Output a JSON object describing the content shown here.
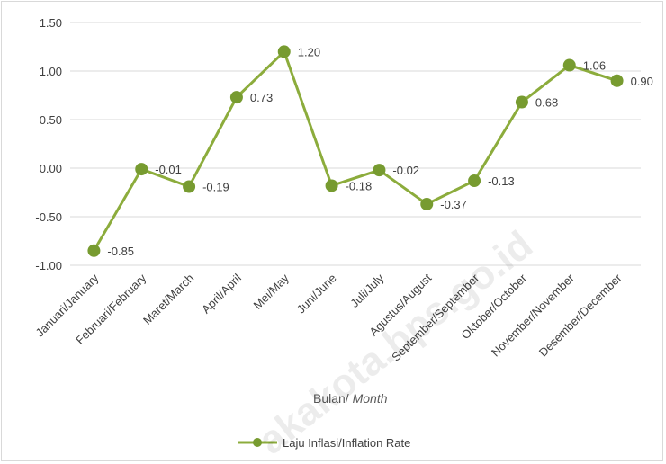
{
  "chart_data": {
    "type": "line",
    "categories": [
      "Januari/January",
      "Februari/February",
      "Maret/March",
      "April/April",
      "Mei/May",
      "Juni/June",
      "Juli/July",
      "Agustus/August",
      "September/September",
      "Oktober/October",
      "November/November",
      "Desember/December"
    ],
    "series": [
      {
        "name": "Laju Inflasi/Inflation Rate",
        "values": [
          -0.85,
          -0.01,
          -0.19,
          0.73,
          1.2,
          -0.18,
          -0.02,
          -0.37,
          -0.13,
          0.68,
          1.06,
          0.9
        ]
      }
    ],
    "data_labels": [
      "-0.85",
      "-0.01",
      "-0.19",
      "0.73",
      "1.20",
      "-0.18",
      "-0.02",
      "-0.37",
      "-0.13",
      "0.68",
      "1.06",
      "0.90"
    ],
    "y_ticks": [
      1.5,
      1.0,
      0.5,
      0.0,
      -0.5,
      -1.0
    ],
    "y_tick_labels": [
      "1.50",
      "1.00",
      "0.50",
      "0.00",
      "-0.50",
      "-1.00"
    ],
    "ylim": [
      -1.0,
      1.5
    ],
    "xlabel": "Bulan/",
    "xlabel_italic": "Month",
    "ylabel": "",
    "grid": true,
    "legend_position": "bottom",
    "colors": {
      "series": "#8cac3c",
      "marker": "#779b30",
      "grid": "#d9d9d9",
      "axis": "#bfbfbf"
    },
    "watermark": "akakota.bps.go.id"
  }
}
